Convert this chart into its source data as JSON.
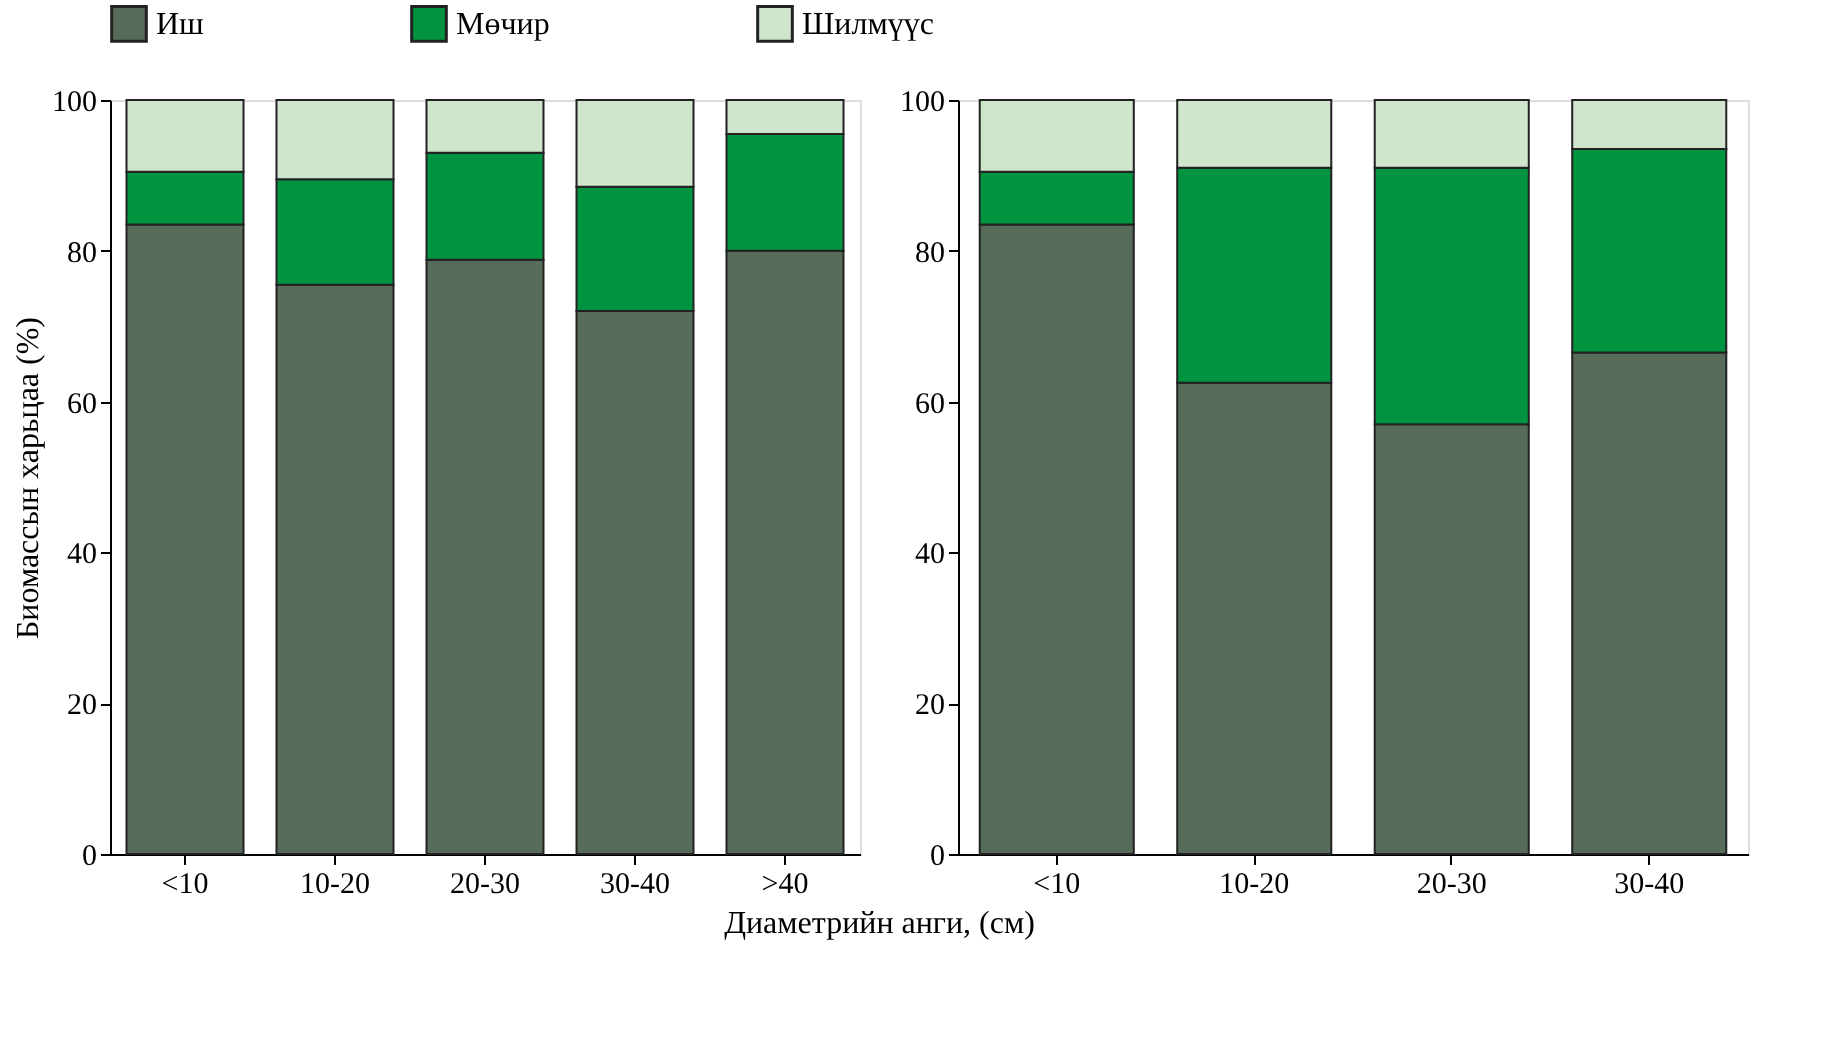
{
  "chart_data": [
    {
      "type": "bar",
      "stacked": true,
      "ylabel": "Биомассын харьцаа (%)",
      "xlabel": "Диаметрийн анги, (см)",
      "legend": "top",
      "categories": [
        "<10",
        "10-20",
        "20-30",
        "30-40",
        ">40"
      ],
      "ylim": [
        0,
        100
      ],
      "yticks": [
        0,
        20,
        40,
        60,
        80,
        100
      ],
      "grid": false,
      "series": [
        {
          "name": "Иш",
          "color": "#566b59",
          "values": [
            83.5,
            75.5,
            78.8,
            72,
            80
          ]
        },
        {
          "name": "Мөчир",
          "color": "#009440",
          "values": [
            7,
            14,
            14.2,
            16.5,
            15.5
          ]
        },
        {
          "name": "Шилмүүс",
          "color": "#cfe6cc",
          "values": [
            9.5,
            10.5,
            7,
            11.5,
            4.5
          ]
        }
      ]
    },
    {
      "type": "bar",
      "stacked": true,
      "legend": "top",
      "categories": [
        "<10",
        "10-20",
        "20-30",
        "30-40"
      ],
      "ylim": [
        0,
        100
      ],
      "yticks": [
        0,
        20,
        40,
        60,
        80,
        100
      ],
      "grid": false,
      "series": [
        {
          "name": "Иш",
          "color": "#566b59",
          "values": [
            83.5,
            62.5,
            57,
            66.5
          ]
        },
        {
          "name": "Мөчир",
          "color": "#009440",
          "values": [
            7,
            28.5,
            34,
            27
          ]
        },
        {
          "name": "Шилмүүс",
          "color": "#cfe6cc",
          "values": [
            9.5,
            9,
            9,
            6.5
          ]
        }
      ]
    }
  ]
}
